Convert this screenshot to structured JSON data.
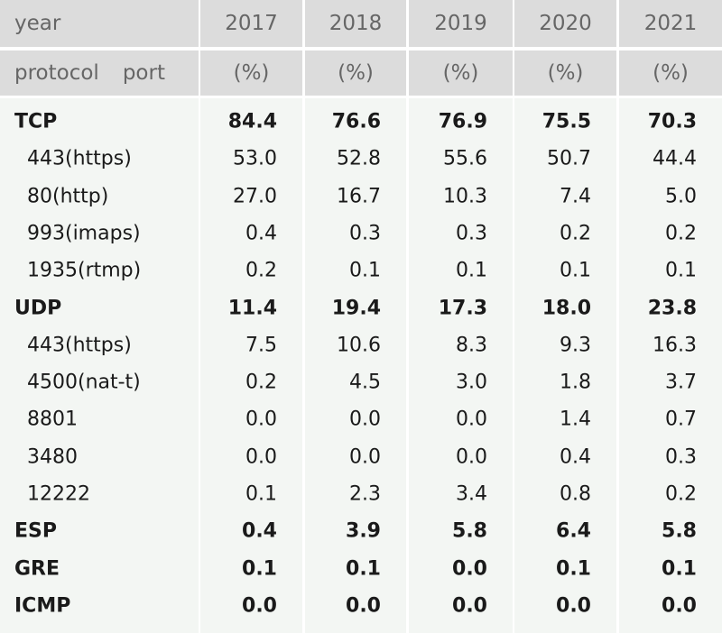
{
  "header": {
    "year_label": "year",
    "years": [
      "2017",
      "2018",
      "2019",
      "2020",
      "2021"
    ],
    "protocol_label": "protocol",
    "port_label": "port",
    "units": [
      "(%)",
      "(%)",
      "(%)",
      "(%)",
      "(%)"
    ]
  },
  "groups": [
    {
      "protocol": "TCP",
      "values": [
        "84.4",
        "76.6",
        "76.9",
        "75.5",
        "70.3"
      ],
      "ports": [
        {
          "port": "443(https)",
          "values": [
            "53.0",
            "52.8",
            "55.6",
            "50.7",
            "44.4"
          ]
        },
        {
          "port": "80(http)",
          "values": [
            "27.0",
            "16.7",
            "10.3",
            "7.4",
            "5.0"
          ]
        },
        {
          "port": "993(imaps)",
          "values": [
            "0.4",
            "0.3",
            "0.3",
            "0.2",
            "0.2"
          ]
        },
        {
          "port": "1935(rtmp)",
          "values": [
            "0.2",
            "0.1",
            "0.1",
            "0.1",
            "0.1"
          ]
        }
      ]
    },
    {
      "protocol": "UDP",
      "values": [
        "11.4",
        "19.4",
        "17.3",
        "18.0",
        "23.8"
      ],
      "ports": [
        {
          "port": "443(https)",
          "values": [
            "7.5",
            "10.6",
            "8.3",
            "9.3",
            "16.3"
          ]
        },
        {
          "port": "4500(nat-t)",
          "values": [
            "0.2",
            "4.5",
            "3.0",
            "1.8",
            "3.7"
          ]
        },
        {
          "port": "8801",
          "values": [
            "0.0",
            "0.0",
            "0.0",
            "1.4",
            "0.7"
          ]
        },
        {
          "port": "3480",
          "values": [
            "0.0",
            "0.0",
            "0.0",
            "0.4",
            "0.3"
          ]
        },
        {
          "port": "12222",
          "values": [
            "0.1",
            "2.3",
            "3.4",
            "0.8",
            "0.2"
          ]
        }
      ]
    },
    {
      "protocol": "ESP",
      "values": [
        "0.4",
        "3.9",
        "5.8",
        "6.4",
        "5.8"
      ],
      "ports": []
    },
    {
      "protocol": "GRE",
      "values": [
        "0.1",
        "0.1",
        "0.0",
        "0.1",
        "0.1"
      ],
      "ports": []
    },
    {
      "protocol": "ICMP",
      "values": [
        "0.0",
        "0.0",
        "0.0",
        "0.0",
        "0.0"
      ],
      "ports": []
    }
  ]
}
